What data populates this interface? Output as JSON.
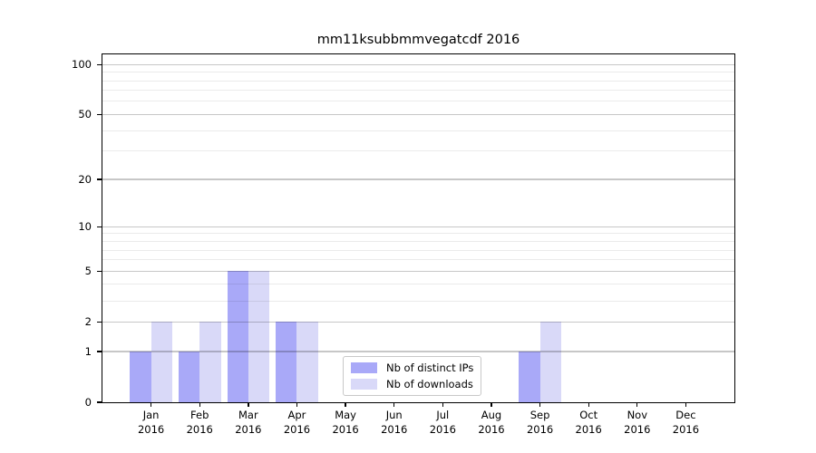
{
  "chart_data": {
    "type": "bar",
    "title": "mm11ksubbmmvegatcdf 2016",
    "xlabel": "",
    "ylabel": "",
    "categories": [
      {
        "month": "Jan",
        "year": "2016"
      },
      {
        "month": "Feb",
        "year": "2016"
      },
      {
        "month": "Mar",
        "year": "2016"
      },
      {
        "month": "Apr",
        "year": "2016"
      },
      {
        "month": "May",
        "year": "2016"
      },
      {
        "month": "Jun",
        "year": "2016"
      },
      {
        "month": "Jul",
        "year": "2016"
      },
      {
        "month": "Aug",
        "year": "2016"
      },
      {
        "month": "Sep",
        "year": "2016"
      },
      {
        "month": "Oct",
        "year": "2016"
      },
      {
        "month": "Nov",
        "year": "2016"
      },
      {
        "month": "Dec",
        "year": "2016"
      }
    ],
    "series": [
      {
        "name": "Nb of distinct IPs",
        "color": "#a9a9f8",
        "values": [
          1,
          1,
          5,
          2,
          0,
          0,
          0,
          0,
          1,
          0,
          0,
          0
        ]
      },
      {
        "name": "Nb of downloads",
        "color": "#d9d9f8",
        "values": [
          2,
          2,
          5,
          2,
          0,
          0,
          0,
          0,
          2,
          0,
          0,
          0
        ]
      }
    ],
    "y_axis": {
      "scale": "log1p",
      "min": 0,
      "max": 115,
      "major_ticks": [
        0,
        1,
        2,
        5,
        10,
        20,
        50,
        100
      ],
      "minor_ticks": [
        3,
        4,
        6,
        7,
        8,
        9,
        30,
        40,
        60,
        70,
        80,
        90
      ],
      "grid": true
    },
    "legend": {
      "position": "lower center",
      "entries": [
        "Nb of distinct IPs",
        "Nb of downloads"
      ]
    }
  },
  "colors": {
    "background": "#ffffff",
    "text": "#000000",
    "axis_spine": "#000000",
    "tick_mark": "#000000",
    "grid_major": "rgba(0,0,0,0.22)",
    "grid_minor": "rgba(0,0,0,0.08)",
    "legend_border": "#c8c8c8"
  }
}
